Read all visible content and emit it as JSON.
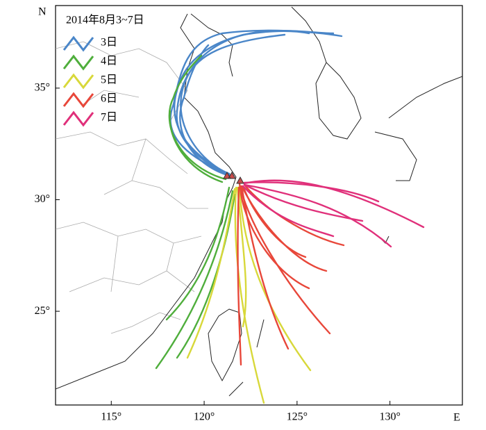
{
  "map": {
    "title": "2014年8月3~7日",
    "x_axis_label": "E",
    "y_axis_label": "N",
    "xlim": [
      112,
      133.9
    ],
    "ylim": [
      20.8,
      38.7
    ],
    "xticks": [
      {
        "value": 115,
        "label": "115°"
      },
      {
        "value": 120,
        "label": "120°"
      },
      {
        "value": 125,
        "label": "125°"
      },
      {
        "value": 130,
        "label": "130°"
      }
    ],
    "yticks": [
      {
        "value": 25,
        "label": "25°"
      },
      {
        "value": 30,
        "label": "30°"
      },
      {
        "value": 35,
        "label": "35°"
      }
    ],
    "legend": [
      {
        "name": "3日",
        "color": "#4a86c8"
      },
      {
        "name": "4日",
        "color": "#4fae3c"
      },
      {
        "name": "5日",
        "color": "#d8d83a"
      },
      {
        "name": "6日",
        "color": "#e8473a"
      },
      {
        "name": "7日",
        "color": "#e0307a"
      }
    ]
  }
}
